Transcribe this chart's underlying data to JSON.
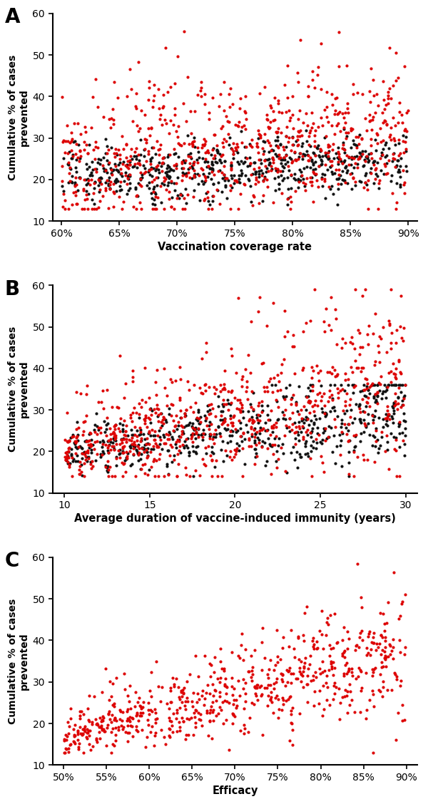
{
  "panels": [
    {
      "label": "A",
      "xlabel": "Vaccination coverage rate",
      "xlim": [
        0.592,
        0.908
      ],
      "xticks": [
        0.6,
        0.65,
        0.7,
        0.75,
        0.8,
        0.85,
        0.9
      ],
      "xticklabels": [
        "60%",
        "65%",
        "70%",
        "75%",
        "80%",
        "85%",
        "90%"
      ],
      "ylim": [
        10,
        60
      ],
      "yticks": [
        10,
        20,
        30,
        40,
        50,
        60
      ],
      "n_red": 800,
      "n_blk": 600,
      "has_black": true
    },
    {
      "label": "B",
      "xlabel": "Average duration of vaccine-induced immunity (years)",
      "xlim": [
        9.3,
        30.7
      ],
      "xticks": [
        10,
        15,
        20,
        25,
        30
      ],
      "xticklabels": [
        "10",
        "15",
        "20",
        "25",
        "30"
      ],
      "ylim": [
        10,
        60
      ],
      "yticks": [
        10,
        20,
        30,
        40,
        50,
        60
      ],
      "n_red": 800,
      "n_blk": 600,
      "has_black": true
    },
    {
      "label": "C",
      "xlabel": "Efficacy",
      "xlim": [
        0.487,
        0.913
      ],
      "xticks": [
        0.5,
        0.55,
        0.6,
        0.65,
        0.7,
        0.75,
        0.8,
        0.85,
        0.9
      ],
      "xticklabels": [
        "50%",
        "55%",
        "60%",
        "65%",
        "70%",
        "75%",
        "80%",
        "85%",
        "90%"
      ],
      "ylim": [
        10,
        60
      ],
      "yticks": [
        10,
        20,
        30,
        40,
        50,
        60
      ],
      "n_red": 700,
      "n_blk": 0,
      "has_black": false
    }
  ],
  "red_color": "#dd0000",
  "black_color": "#111111",
  "point_size": 9,
  "background_color": "#ffffff",
  "ylabel": "Cumulative % of cases\nprevented",
  "seed": 12345
}
